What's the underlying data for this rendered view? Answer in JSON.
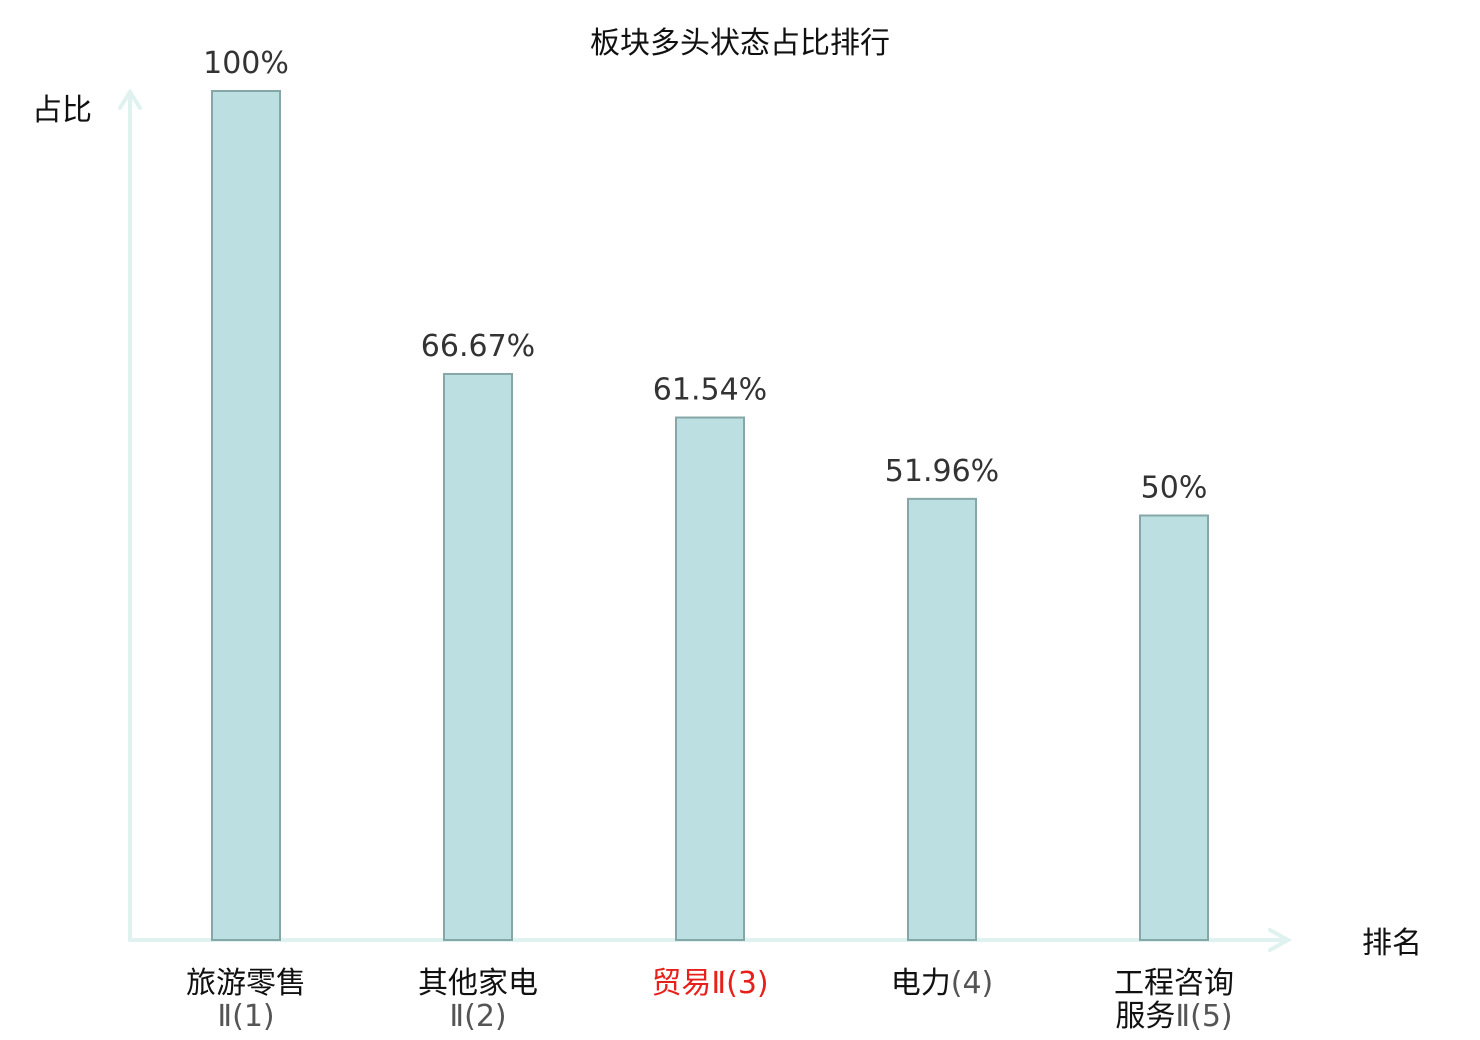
{
  "chart_data": {
    "type": "bar",
    "title": "板块多头状态占比排行",
    "ylabel": "占比",
    "xlabel": "排名",
    "ylim": [
      0,
      100
    ],
    "grid": false,
    "legend": "none",
    "categories": [
      {
        "name": "旅游零售",
        "rank_text": "Ⅱ(1)"
      },
      {
        "name": "其他家电",
        "rank_text": "Ⅱ(2)"
      },
      {
        "name": "贸易",
        "rank_text": "Ⅱ(3)",
        "highlight": true
      },
      {
        "name": "电力",
        "rank_text": "(4)"
      },
      {
        "name": "工程咨询服务",
        "rank_text": "Ⅱ(5)"
      }
    ],
    "values": [
      100,
      66.67,
      61.54,
      51.96,
      50
    ],
    "value_labels": [
      "100%",
      "66.67%",
      "61.54%",
      "51.96%",
      "50%"
    ],
    "colors": {
      "bar_fill": "#bce0e2",
      "bar_stroke": "#86a7a8",
      "axis": "#dff2ef",
      "highlight_text": "#e8201c"
    }
  }
}
